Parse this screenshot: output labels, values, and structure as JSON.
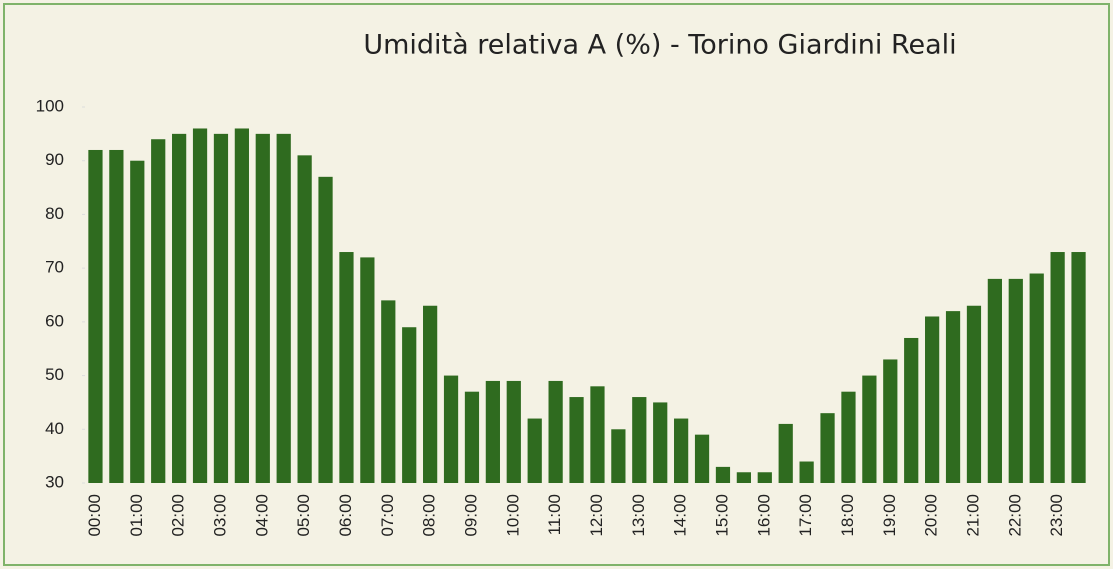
{
  "chart_data": {
    "type": "bar",
    "title": "Umidità relativa A (%) - Torino Giardini Reali",
    "categories": [
      "00:00",
      null,
      "01:00",
      null,
      "02:00",
      null,
      "03:00",
      null,
      "04:00",
      null,
      "05:00",
      null,
      "06:00",
      null,
      "07:00",
      null,
      "08:00",
      null,
      "09:00",
      null,
      "10:00",
      null,
      "11:00",
      null,
      "12:00",
      null,
      "13:00",
      null,
      "14:00",
      null,
      "15:00",
      null,
      "16:00",
      null,
      "17:00",
      null,
      "18:00",
      null,
      "19:00",
      null,
      "20:00",
      null,
      "21:00",
      null,
      "22:00",
      null,
      "23:00",
      null
    ],
    "values": [
      92,
      92,
      90,
      94,
      95,
      96,
      95,
      96,
      95,
      95,
      91,
      87,
      73,
      72,
      64,
      59,
      63,
      50,
      47,
      49,
      49,
      42,
      49,
      46,
      48,
      40,
      46,
      45,
      42,
      39,
      33,
      32,
      32,
      41,
      34,
      43,
      47,
      50,
      53,
      57,
      61,
      62,
      63,
      68,
      68,
      69,
      73,
      73
    ],
    "color": "#2f6b1f",
    "ylim": [
      30,
      100
    ],
    "yticks": [
      30,
      40,
      50,
      60,
      70,
      80,
      90,
      100
    ],
    "grid": false
  }
}
